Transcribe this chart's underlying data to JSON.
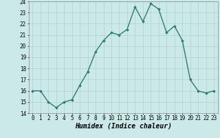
{
  "x": [
    0,
    1,
    2,
    3,
    4,
    5,
    6,
    7,
    8,
    9,
    10,
    11,
    12,
    13,
    14,
    15,
    16,
    17,
    18,
    19,
    20,
    21,
    22,
    23
  ],
  "y": [
    16.0,
    16.0,
    15.0,
    14.5,
    15.0,
    15.2,
    16.5,
    17.7,
    19.5,
    20.5,
    21.2,
    21.0,
    21.5,
    23.5,
    22.2,
    23.8,
    23.3,
    21.2,
    21.8,
    20.5,
    17.0,
    16.0,
    15.8,
    16.0
  ],
  "line_color": "#2d7a6e",
  "marker": "D",
  "marker_size": 1.8,
  "line_width": 1.0,
  "xlabel": "Humidex (Indice chaleur)",
  "xlabel_fontsize": 7,
  "xlabel_fontweight": "bold",
  "xlabel_style": "italic",
  "ylim": [
    14,
    24
  ],
  "xlim": [
    -0.5,
    23.5
  ],
  "yticks": [
    14,
    15,
    16,
    17,
    18,
    19,
    20,
    21,
    22,
    23,
    24
  ],
  "xticks": [
    0,
    1,
    2,
    3,
    4,
    5,
    6,
    7,
    8,
    9,
    10,
    11,
    12,
    13,
    14,
    15,
    16,
    17,
    18,
    19,
    20,
    21,
    22,
    23
  ],
  "bg_color": "#cce9e9",
  "grid_color": "#b0d0d0",
  "tick_fontsize": 5.5,
  "fig_width": 3.2,
  "fig_height": 2.0,
  "dpi": 100
}
